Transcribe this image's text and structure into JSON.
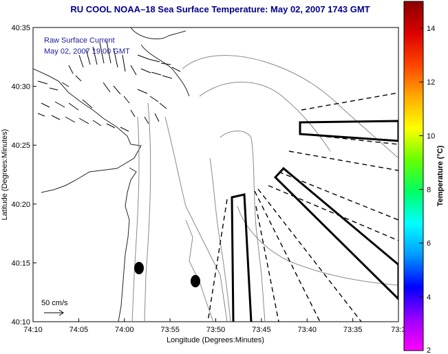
{
  "title": "RU COOL  NOAA–18  Sea Surface Temperature:  May 02, 2007 1743 GMT",
  "annotation": {
    "line1": "Raw Surface Current",
    "line2": "May 02, 2007 19:00 GMT"
  },
  "scale_label": "50 cm/s",
  "x_axis": {
    "label": "Longitude (Degrees:Minutes)",
    "ticks": [
      "74:10",
      "74:05",
      "74:00",
      "73:55",
      "73:50",
      "73:45",
      "73:40",
      "73:35",
      "73:3"
    ]
  },
  "y_axis": {
    "label": "Latitude (Degrees:Minutes)",
    "ticks": [
      "40:35",
      "40:30",
      "40:25",
      "40:20",
      "40:15",
      "40:10"
    ]
  },
  "colorbar": {
    "label": "Temperature (°C)",
    "ticks": [
      "14",
      "12",
      "10",
      "8",
      "6",
      "4",
      "2"
    ],
    "min": 2,
    "max": 15,
    "colors": [
      "#ff00ff",
      "#9900ff",
      "#0000ff",
      "#0099ff",
      "#00ffff",
      "#00ff66",
      "#66ff00",
      "#ffff00",
      "#ffaa00",
      "#ff4400",
      "#dd0000",
      "#880000"
    ]
  }
}
